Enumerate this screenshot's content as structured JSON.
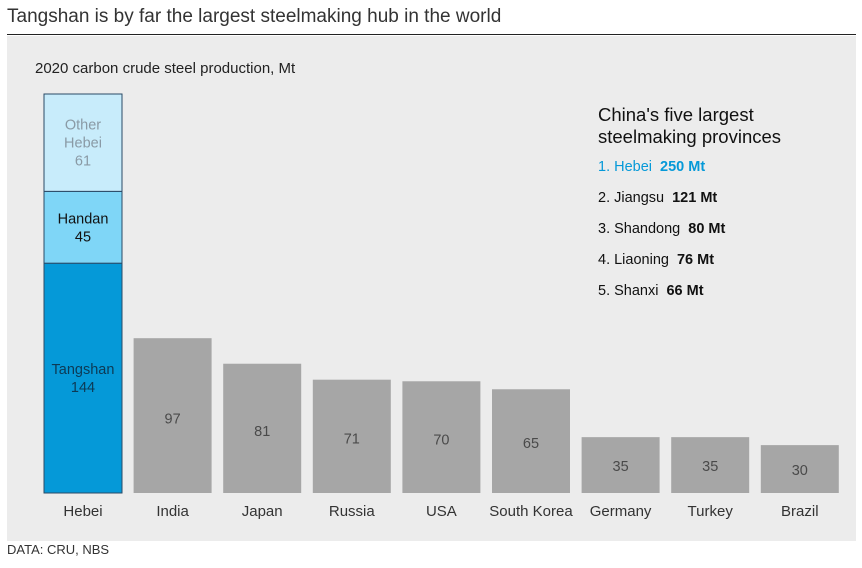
{
  "title": "Tangshan is by far the largest steelmaking hub in the world",
  "source": "DATA: CRU, NBS",
  "colors": {
    "panel_bg": "#ececec",
    "country_bar": "#a6a6a6",
    "tangshan": "#0599d8",
    "handan": "#7fd6f7",
    "other_hebei": "#c8ecfb",
    "highlight_text": "#0599d8"
  },
  "legend": {
    "title_line1": "China's five largest",
    "title_line2": "steelmaking provinces",
    "items": [
      {
        "rank": "1. Hebei",
        "value": "250 Mt"
      },
      {
        "rank": "2. Jiangsu",
        "value": "121 Mt"
      },
      {
        "rank": "3. Shandong",
        "value": "80 Mt"
      },
      {
        "rank": "4. Liaoning",
        "value": "76 Mt"
      },
      {
        "rank": "5. Shanxi",
        "value": "66 Mt"
      }
    ]
  },
  "chart_data": {
    "type": "bar",
    "title": "2020 carbon crude steel production, Mt",
    "categories": [
      "Hebei",
      "India",
      "Japan",
      "Russia",
      "USA",
      "South Korea",
      "Germany",
      "Turkey",
      "Brazil"
    ],
    "values": [
      250,
      97,
      81,
      71,
      70,
      65,
      35,
      35,
      30
    ],
    "hebei_stack": [
      {
        "name": "Tangshan",
        "value": 144
      },
      {
        "name": "Handan",
        "value": 45
      },
      {
        "name": "Other Hebei",
        "value": 61
      }
    ],
    "ylim": [
      0,
      250
    ],
    "grid": false,
    "legend_position": "right"
  }
}
